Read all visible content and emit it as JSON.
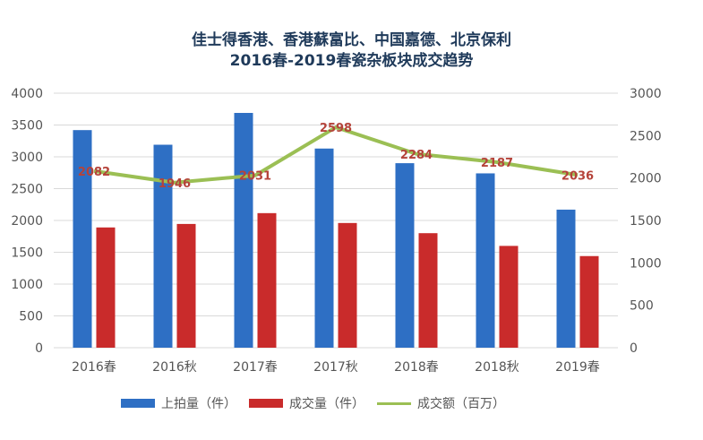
{
  "chart_data": {
    "type": "bar",
    "title": "佳士得香港、香港蘇富比、中国嘉德、北京保利",
    "subtitle": "2016春-2019春瓷杂板块成交趋势",
    "categories": [
      "2016春",
      "2016秋",
      "2017春",
      "2017秋",
      "2018春",
      "2018秋",
      "2019春"
    ],
    "series": [
      {
        "name": "上拍量（件）",
        "type": "bar",
        "axis": "left",
        "color": "#2e6fc4",
        "values": [
          3420,
          3190,
          3690,
          3130,
          2900,
          2740,
          2170
        ]
      },
      {
        "name": "成交量（件）",
        "type": "bar",
        "axis": "left",
        "color": "#c92b2b",
        "values": [
          1890,
          1945,
          2115,
          1960,
          1800,
          1600,
          1440
        ]
      },
      {
        "name": "成交额（百万）",
        "type": "line",
        "axis": "right",
        "color": "#9bbf54",
        "values": [
          2082,
          1946,
          2031,
          2598,
          2284,
          2187,
          2036
        ],
        "data_labels": [
          "2082",
          "1946",
          "2031",
          "2598",
          "2284",
          "2187",
          "2036"
        ],
        "label_color": "#b5433a"
      }
    ],
    "y_left": {
      "min": 0,
      "max": 4000,
      "step": 500,
      "ticks": [
        "0",
        "500",
        "1000",
        "1500",
        "2000",
        "2500",
        "3000",
        "3500",
        "4000"
      ]
    },
    "y_right": {
      "min": 0,
      "max": 3000,
      "step": 500,
      "ticks": [
        "0",
        "500",
        "1000",
        "1500",
        "2000",
        "2500",
        "3000"
      ]
    },
    "xlabel": "",
    "ylabel": "",
    "grid": true,
    "legend_position": "bottom"
  },
  "legend": [
    {
      "label": "上拍量（件）",
      "color": "#2e6fc4",
      "kind": "bar"
    },
    {
      "label": "成交量（件）",
      "color": "#c92b2b",
      "kind": "bar"
    },
    {
      "label": "成交额（百万）",
      "color": "#9bbf54",
      "kind": "line"
    }
  ]
}
